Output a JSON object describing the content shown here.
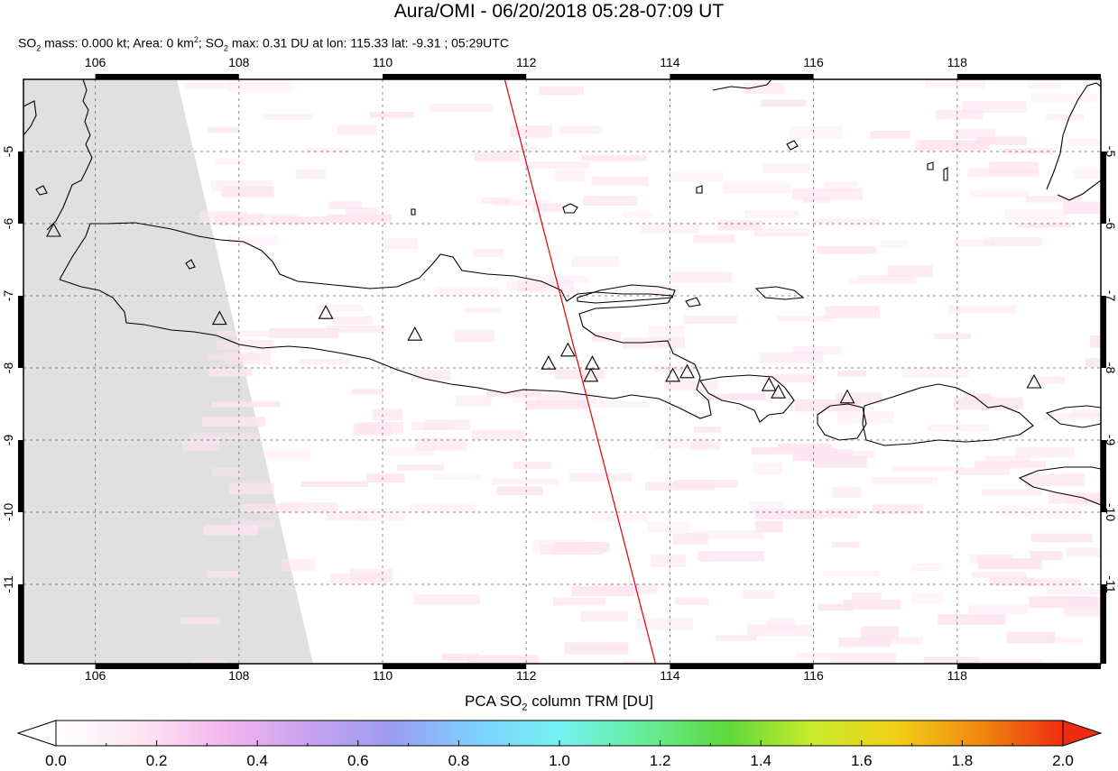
{
  "header": {
    "title": "Aura/OMI - 06/20/2018 05:28-07:09 UT",
    "stats_prefix_so2": "SO",
    "stats_mass": " mass: 0.000 kt; Area: 0 km",
    "stats_max_prefix": "; SO",
    "stats_max": " max: 0.31 DU at lon: 115.33 lat: -9.31 ; 05:29UTC"
  },
  "map": {
    "lon_range": [
      105,
      120
    ],
    "lat_range": [
      -12.1,
      -4.0
    ],
    "lon_ticks": [
      "106",
      "108",
      "110",
      "112",
      "114",
      "116",
      "118"
    ],
    "lon_tick_values": [
      106,
      108,
      110,
      112,
      114,
      116,
      118
    ],
    "lat_ticks": [
      "-5",
      "-6",
      "-7",
      "-8",
      "-9",
      "-10",
      "-11"
    ],
    "lat_tick_values": [
      -5,
      -6,
      -7,
      -8,
      -9,
      -10,
      -11
    ],
    "colors": {
      "no_data": "#e0e0e0",
      "coast": "#000000",
      "grid": "#888888",
      "track": "#e00000",
      "low_so2": "#fde4f0"
    },
    "volcanoes": [
      {
        "lon": 105.42,
        "lat": -6.1
      },
      {
        "lon": 107.73,
        "lat": -7.32
      },
      {
        "lon": 109.21,
        "lat": -7.24
      },
      {
        "lon": 110.45,
        "lat": -7.54
      },
      {
        "lon": 112.31,
        "lat": -7.94
      },
      {
        "lon": 112.58,
        "lat": -7.76
      },
      {
        "lon": 112.92,
        "lat": -7.94
      },
      {
        "lon": 112.9,
        "lat": -8.11
      },
      {
        "lon": 114.04,
        "lat": -8.11
      },
      {
        "lon": 114.24,
        "lat": -8.06
      },
      {
        "lon": 115.38,
        "lat": -8.24
      },
      {
        "lon": 115.51,
        "lat": -8.34
      },
      {
        "lon": 116.47,
        "lat": -8.41
      },
      {
        "lon": 119.07,
        "lat": -8.2
      }
    ],
    "track": {
      "lon": [
        111.7,
        113.8
      ],
      "lat": [
        -4.0,
        -12.1
      ]
    }
  },
  "colorbar": {
    "label_prefix": "PCA SO",
    "label_suffix": " column TRM [DU]",
    "tick_labels": [
      "0.0",
      "0.2",
      "0.4",
      "0.6",
      "0.8",
      "1.0",
      "1.2",
      "1.4",
      "1.6",
      "1.8",
      "2.0"
    ],
    "range": [
      0.0,
      2.0
    ],
    "stops": [
      "#ffffff",
      "#fde6f2",
      "#f4b6ee",
      "#c8a2f0",
      "#9c9cf2",
      "#7ed0ff",
      "#74f2f2",
      "#66ec9a",
      "#5ed83a",
      "#c8ec2c",
      "#f0d018",
      "#f08a10",
      "#f02c10"
    ]
  }
}
